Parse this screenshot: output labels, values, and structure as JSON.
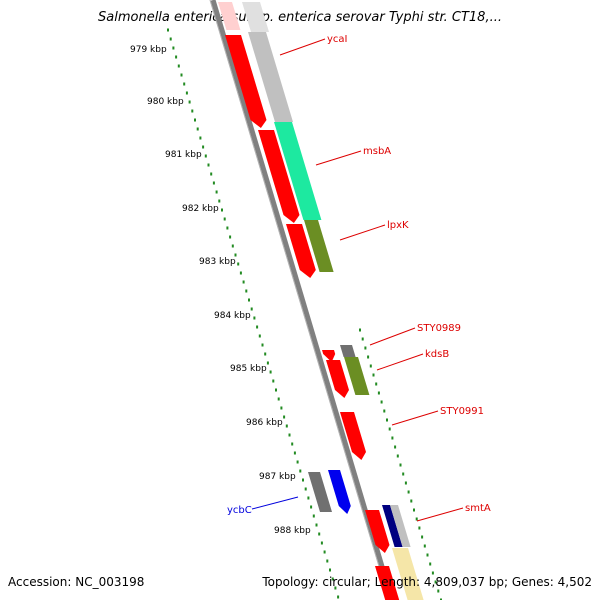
{
  "title": "Salmonella enterica subsp. enterica serovar Typhi str. CT18,...",
  "accession": "Accession: NC_003198",
  "summary": "Topology: circular; Length: 4,809,037 bp; Genes: 4,502",
  "scale_labels": [
    "979 kbp",
    "980 kbp",
    "981 kbp",
    "982 kbp",
    "983 kbp",
    "984 kbp",
    "985 kbp",
    "986 kbp",
    "987 kbp",
    "988 kbp"
  ],
  "colors": {
    "forward_cds": "#ff0000",
    "pale_cds": "#ffd0d0",
    "gray_cds": "#c0c0c0",
    "dark_gray_cds": "#707070",
    "teal_cds": "#1de9a0",
    "olive_cds": "#6b8e23",
    "blue_cds": "#0000ee",
    "navy_cds": "#000080",
    "cream_cds": "#f5e6a8",
    "backbone": "#808080",
    "tick": "#228b22"
  },
  "genes": [
    {
      "name": "ycaI",
      "color": "#dd0000"
    },
    {
      "name": "msbA",
      "color": "#dd0000"
    },
    {
      "name": "lpxK",
      "color": "#dd0000"
    },
    {
      "name": "STY0989",
      "color": "#dd0000"
    },
    {
      "name": "kdsB",
      "color": "#dd0000"
    },
    {
      "name": "STY0991",
      "color": "#dd0000"
    },
    {
      "name": "ycbC",
      "color": "#0000dd"
    },
    {
      "name": "smtA",
      "color": "#dd0000"
    }
  ]
}
